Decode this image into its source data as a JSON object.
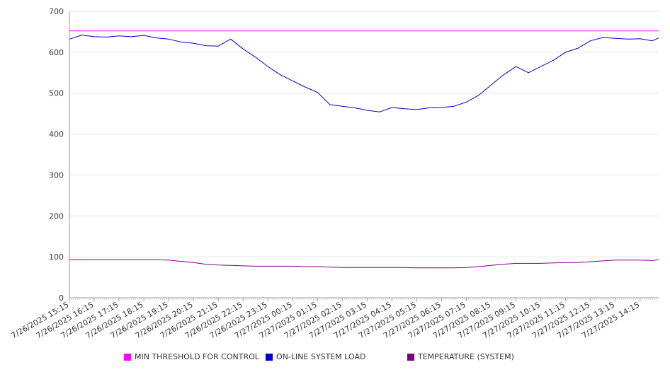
{
  "chart_data": {
    "type": "line",
    "title": "",
    "xlabel": "",
    "ylabel": "",
    "ylim": [
      0,
      700
    ],
    "yticks": [
      0,
      100,
      200,
      300,
      400,
      500,
      600,
      700
    ],
    "grid": "horizontal",
    "legend_position": "bottom",
    "x_tick_labels": [
      "7/26/2025 15:15",
      "7/26/2025 16:15",
      "7/26/2025 17:15",
      "7/26/2025 18:15",
      "7/26/2025 19:15",
      "7/26/2025 20:15",
      "7/26/2025 21:15",
      "7/26/2025 22:15",
      "7/26/2025 23:15",
      "7/27/2025 00:15",
      "7/27/2025 01:15",
      "7/27/2025 02:15",
      "7/27/2025 03:15",
      "7/27/2025 04:15",
      "7/27/2025 05:15",
      "7/27/2025 06:15",
      "7/27/2025 07:15",
      "7/27/2025 08:15",
      "7/27/2025 09:15",
      "7/27/2025 10:15",
      "7/27/2025 11:15",
      "7/27/2025 12:15",
      "7/27/2025 13:15",
      "7/27/2025 14:15"
    ],
    "x": [
      "7/26/2025 15:15",
      "7/26/2025 15:45",
      "7/26/2025 16:15",
      "7/26/2025 16:45",
      "7/26/2025 17:15",
      "7/26/2025 17:45",
      "7/26/2025 18:15",
      "7/26/2025 18:45",
      "7/26/2025 19:15",
      "7/26/2025 19:45",
      "7/26/2025 20:15",
      "7/26/2025 20:45",
      "7/26/2025 21:15",
      "7/26/2025 21:45",
      "7/26/2025 22:15",
      "7/26/2025 22:45",
      "7/26/2025 23:15",
      "7/26/2025 23:45",
      "7/27/2025 00:15",
      "7/27/2025 00:45",
      "7/27/2025 01:15",
      "7/27/2025 01:45",
      "7/27/2025 02:15",
      "7/27/2025 02:45",
      "7/27/2025 03:15",
      "7/27/2025 03:45",
      "7/27/2025 04:15",
      "7/27/2025 04:45",
      "7/27/2025 05:15",
      "7/27/2025 05:45",
      "7/27/2025 06:15",
      "7/27/2025 06:45",
      "7/27/2025 07:15",
      "7/27/2025 07:45",
      "7/27/2025 08:15",
      "7/27/2025 08:45",
      "7/27/2025 09:15",
      "7/27/2025 09:45",
      "7/27/2025 10:15",
      "7/27/2025 10:45",
      "7/27/2025 11:15",
      "7/27/2025 11:45",
      "7/27/2025 12:15",
      "7/27/2025 12:45",
      "7/27/2025 13:15",
      "7/27/2025 13:45",
      "7/27/2025 14:15",
      "7/27/2025 14:45",
      "7/27/2025 15:00"
    ],
    "series": [
      {
        "name": "MIN THRESHOLD FOR CONTROL",
        "color": "#ff00ff",
        "values": [
          652,
          652,
          652,
          652,
          652,
          652,
          652,
          652,
          652,
          652,
          652,
          652,
          652,
          652,
          652,
          652,
          652,
          652,
          652,
          652,
          652,
          652,
          652,
          652,
          652,
          652,
          652,
          652,
          652,
          652,
          652,
          652,
          652,
          652,
          652,
          652,
          652,
          652,
          652,
          652,
          652,
          652,
          652,
          652,
          652,
          652,
          652,
          652,
          652
        ]
      },
      {
        "name": "ON-LINE SYSTEM LOAD",
        "color": "#0000cc",
        "values": [
          632,
          642,
          638,
          637,
          640,
          638,
          641,
          635,
          632,
          625,
          622,
          616,
          615,
          632,
          608,
          588,
          565,
          545,
          530,
          515,
          502,
          472,
          468,
          464,
          458,
          454,
          465,
          462,
          460,
          464,
          465,
          468,
          478,
          495,
          520,
          545,
          565,
          550,
          565,
          580,
          600,
          610,
          628,
          636,
          634,
          632,
          633,
          628,
          635
        ]
      },
      {
        "name": "TEMPERATURE (SYSTEM)",
        "color": "#800080",
        "values": [
          93,
          93,
          93,
          93,
          93,
          93,
          93,
          93,
          92,
          89,
          86,
          82,
          80,
          79,
          78,
          77,
          77,
          77,
          77,
          76,
          76,
          75,
          74,
          74,
          74,
          74,
          74,
          74,
          73,
          73,
          73,
          73,
          74,
          76,
          79,
          82,
          84,
          84,
          84,
          85,
          86,
          86,
          88,
          90,
          92,
          92,
          92,
          91,
          93
        ]
      }
    ]
  }
}
